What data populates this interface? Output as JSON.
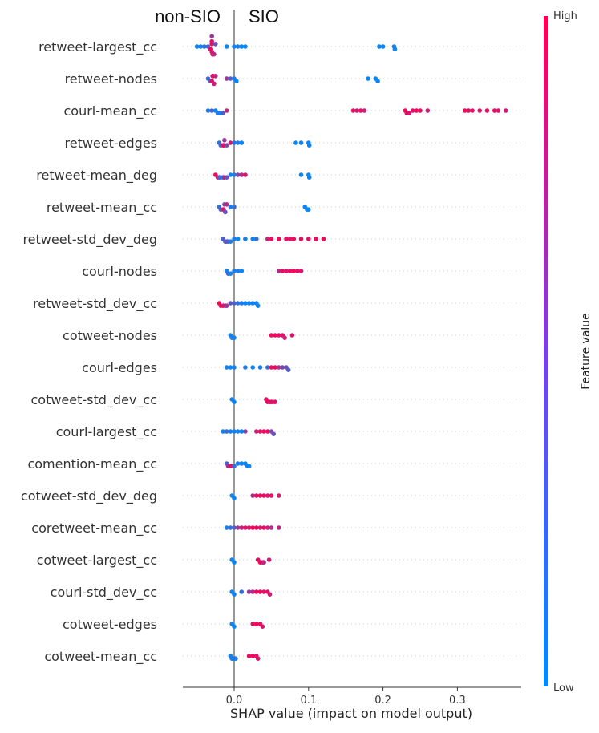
{
  "chart_data": {
    "type": "scatter",
    "subtype": "shap-beeswarm",
    "xlabel": "SHAP value (impact on model output)",
    "xlim": [
      -0.07,
      0.38
    ],
    "xticks": [
      0.0,
      0.1,
      0.2,
      0.3
    ],
    "xtick_labels": [
      "0.0",
      "0.1",
      "0.2",
      "0.3"
    ],
    "side_labels": {
      "left": "non-SIO",
      "right": "SIO"
    },
    "colorbar": {
      "title": "Feature value",
      "high": "High",
      "low": "Low",
      "color_low": "#008bfb",
      "color_high": "#ff0052"
    },
    "features": [
      {
        "name": "retweet-largest_cc",
        "points": [
          [
            -0.05,
            0.05
          ],
          [
            -0.045,
            0.1
          ],
          [
            -0.04,
            0.15
          ],
          [
            -0.035,
            0.3
          ],
          [
            -0.032,
            0.8
          ],
          [
            -0.031,
            0.9
          ],
          [
            -0.03,
            0.95
          ],
          [
            -0.03,
            0.9
          ],
          [
            -0.03,
            0.85
          ],
          [
            -0.029,
            0.9
          ],
          [
            -0.028,
            0.8
          ],
          [
            -0.027,
            0.7
          ],
          [
            -0.03,
            0.6
          ],
          [
            -0.025,
            0.4
          ],
          [
            -0.01,
            0.05
          ],
          [
            0.0,
            0.05
          ],
          [
            0.005,
            0.08
          ],
          [
            0.01,
            0.05
          ],
          [
            0.015,
            0.05
          ],
          [
            0.195,
            0.05
          ],
          [
            0.2,
            0.05
          ],
          [
            0.215,
            0.05
          ],
          [
            0.216,
            0.05
          ]
        ]
      },
      {
        "name": "retweet-nodes",
        "points": [
          [
            -0.035,
            0.2
          ],
          [
            -0.032,
            0.3
          ],
          [
            -0.03,
            0.9
          ],
          [
            -0.029,
            0.85
          ],
          [
            -0.028,
            0.95
          ],
          [
            -0.027,
            0.8
          ],
          [
            -0.025,
            0.7
          ],
          [
            -0.01,
            0.6
          ],
          [
            -0.005,
            0.3
          ],
          [
            0.0,
            0.1
          ],
          [
            0.003,
            0.05
          ],
          [
            0.18,
            0.05
          ],
          [
            0.19,
            0.05
          ],
          [
            0.193,
            0.05
          ]
        ]
      },
      {
        "name": "courl-mean_cc",
        "points": [
          [
            -0.035,
            0.1
          ],
          [
            -0.03,
            0.3
          ],
          [
            -0.025,
            0.05
          ],
          [
            -0.022,
            0.1
          ],
          [
            -0.02,
            0.2
          ],
          [
            -0.018,
            0.05
          ],
          [
            -0.015,
            0.3
          ],
          [
            -0.01,
            0.7
          ],
          [
            0.16,
            0.9
          ],
          [
            0.165,
            0.85
          ],
          [
            0.17,
            0.9
          ],
          [
            0.175,
            0.8
          ],
          [
            0.23,
            0.95
          ],
          [
            0.232,
            0.9
          ],
          [
            0.235,
            0.85
          ],
          [
            0.24,
            0.9
          ],
          [
            0.245,
            0.95
          ],
          [
            0.25,
            0.9
          ],
          [
            0.26,
            0.8
          ],
          [
            0.31,
            0.95
          ],
          [
            0.315,
            0.9
          ],
          [
            0.32,
            0.9
          ],
          [
            0.33,
            0.85
          ],
          [
            0.34,
            0.95
          ],
          [
            0.35,
            0.9
          ],
          [
            0.355,
            0.85
          ],
          [
            0.365,
            0.8
          ]
        ]
      },
      {
        "name": "retweet-edges",
        "points": [
          [
            -0.02,
            0.2
          ],
          [
            -0.018,
            0.3
          ],
          [
            -0.015,
            0.8
          ],
          [
            -0.014,
            0.9
          ],
          [
            -0.013,
            0.6
          ],
          [
            -0.01,
            0.5
          ],
          [
            -0.005,
            0.8
          ],
          [
            0.0,
            0.2
          ],
          [
            0.005,
            0.1
          ],
          [
            0.01,
            0.05
          ],
          [
            0.083,
            0.05
          ],
          [
            0.09,
            0.05
          ],
          [
            0.1,
            0.05
          ],
          [
            0.101,
            0.05
          ]
        ]
      },
      {
        "name": "retweet-mean_deg",
        "points": [
          [
            -0.025,
            0.95
          ],
          [
            -0.022,
            0.9
          ],
          [
            -0.02,
            0.3
          ],
          [
            -0.018,
            0.2
          ],
          [
            -0.015,
            0.1
          ],
          [
            -0.013,
            0.85
          ],
          [
            -0.01,
            0.4
          ],
          [
            -0.005,
            0.1
          ],
          [
            0.0,
            0.1
          ],
          [
            0.005,
            0.5
          ],
          [
            0.01,
            0.7
          ],
          [
            0.015,
            0.85
          ],
          [
            0.09,
            0.05
          ],
          [
            0.1,
            0.05
          ],
          [
            0.101,
            0.05
          ]
        ]
      },
      {
        "name": "retweet-mean_cc",
        "points": [
          [
            -0.02,
            0.2
          ],
          [
            -0.018,
            0.3
          ],
          [
            -0.015,
            0.9
          ],
          [
            -0.014,
            0.8
          ],
          [
            -0.013,
            0.5
          ],
          [
            -0.012,
            0.4
          ],
          [
            -0.01,
            0.7
          ],
          [
            -0.005,
            0.1
          ],
          [
            0.0,
            0.2
          ],
          [
            0.095,
            0.05
          ],
          [
            0.098,
            0.05
          ],
          [
            0.1,
            0.05
          ]
        ]
      },
      {
        "name": "retweet-std_dev_deg",
        "points": [
          [
            -0.015,
            0.3
          ],
          [
            -0.012,
            0.2
          ],
          [
            -0.01,
            0.5
          ],
          [
            -0.008,
            0.3
          ],
          [
            -0.005,
            0.1
          ],
          [
            0.0,
            0.1
          ],
          [
            0.005,
            0.05
          ],
          [
            0.015,
            0.1
          ],
          [
            0.025,
            0.05
          ],
          [
            0.03,
            0.2
          ],
          [
            0.045,
            0.8
          ],
          [
            0.05,
            0.9
          ],
          [
            0.06,
            0.95
          ],
          [
            0.07,
            0.9
          ],
          [
            0.075,
            0.85
          ],
          [
            0.08,
            0.95
          ],
          [
            0.09,
            0.9
          ],
          [
            0.1,
            0.85
          ],
          [
            0.11,
            0.9
          ],
          [
            0.12,
            0.95
          ]
        ]
      },
      {
        "name": "courl-nodes",
        "points": [
          [
            -0.01,
            0.1
          ],
          [
            -0.008,
            0.2
          ],
          [
            -0.005,
            0.05
          ],
          [
            0.0,
            0.1
          ],
          [
            0.005,
            0.1
          ],
          [
            0.01,
            0.05
          ],
          [
            0.06,
            0.7
          ],
          [
            0.065,
            0.9
          ],
          [
            0.07,
            0.85
          ],
          [
            0.075,
            0.9
          ],
          [
            0.08,
            0.95
          ],
          [
            0.085,
            0.9
          ],
          [
            0.09,
            0.85
          ]
        ]
      },
      {
        "name": "retweet-std_dev_cc",
        "points": [
          [
            -0.02,
            0.95
          ],
          [
            -0.018,
            0.9
          ],
          [
            -0.015,
            0.85
          ],
          [
            -0.012,
            0.8
          ],
          [
            -0.01,
            0.6
          ],
          [
            -0.005,
            0.4
          ],
          [
            0.0,
            0.3
          ],
          [
            0.005,
            0.2
          ],
          [
            0.01,
            0.1
          ],
          [
            0.015,
            0.05
          ],
          [
            0.02,
            0.05
          ],
          [
            0.025,
            0.1
          ],
          [
            0.03,
            0.05
          ],
          [
            0.032,
            0.05
          ]
        ]
      },
      {
        "name": "cotweet-nodes",
        "points": [
          [
            -0.005,
            0.05
          ],
          [
            -0.003,
            0.1
          ],
          [
            0.0,
            0.05
          ],
          [
            0.05,
            0.9
          ],
          [
            0.055,
            0.95
          ],
          [
            0.06,
            0.85
          ],
          [
            0.065,
            0.9
          ],
          [
            0.068,
            0.8
          ],
          [
            0.078,
            0.85
          ]
        ]
      },
      {
        "name": "courl-edges",
        "points": [
          [
            -0.01,
            0.1
          ],
          [
            -0.005,
            0.05
          ],
          [
            0.0,
            0.05
          ],
          [
            0.015,
            0.1
          ],
          [
            0.025,
            0.05
          ],
          [
            0.035,
            0.1
          ],
          [
            0.045,
            0.2
          ],
          [
            0.05,
            0.9
          ],
          [
            0.055,
            0.95
          ],
          [
            0.06,
            0.6
          ],
          [
            0.065,
            0.5
          ],
          [
            0.07,
            0.4
          ],
          [
            0.073,
            0.3
          ]
        ]
      },
      {
        "name": "cotweet-std_dev_cc",
        "points": [
          [
            -0.003,
            0.05
          ],
          [
            0.0,
            0.05
          ],
          [
            0.043,
            0.9
          ],
          [
            0.045,
            0.95
          ],
          [
            0.048,
            0.9
          ],
          [
            0.05,
            0.85
          ],
          [
            0.052,
            0.9
          ],
          [
            0.055,
            0.85
          ]
        ]
      },
      {
        "name": "courl-largest_cc",
        "points": [
          [
            -0.015,
            0.1
          ],
          [
            -0.01,
            0.2
          ],
          [
            -0.005,
            0.1
          ],
          [
            0.0,
            0.05
          ],
          [
            0.005,
            0.1
          ],
          [
            0.01,
            0.05
          ],
          [
            0.015,
            0.5
          ],
          [
            0.03,
            0.8
          ],
          [
            0.035,
            0.9
          ],
          [
            0.04,
            0.95
          ],
          [
            0.045,
            0.9
          ],
          [
            0.05,
            0.5
          ],
          [
            0.053,
            0.4
          ]
        ]
      },
      {
        "name": "comention-mean_cc",
        "points": [
          [
            -0.01,
            0.3
          ],
          [
            -0.008,
            0.7
          ],
          [
            -0.005,
            0.8
          ],
          [
            -0.003,
            0.9
          ],
          [
            0.0,
            0.2
          ],
          [
            0.005,
            0.1
          ],
          [
            0.01,
            0.05
          ],
          [
            0.015,
            0.05
          ],
          [
            0.018,
            0.1
          ],
          [
            0.02,
            0.05
          ]
        ]
      },
      {
        "name": "cotweet-std_dev_deg",
        "points": [
          [
            -0.003,
            0.05
          ],
          [
            0.0,
            0.05
          ],
          [
            0.025,
            0.7
          ],
          [
            0.03,
            0.9
          ],
          [
            0.035,
            0.95
          ],
          [
            0.04,
            0.9
          ],
          [
            0.045,
            0.85
          ],
          [
            0.05,
            0.9
          ],
          [
            0.06,
            0.8
          ]
        ]
      },
      {
        "name": "coretweet-mean_cc",
        "points": [
          [
            -0.01,
            0.1
          ],
          [
            -0.005,
            0.2
          ],
          [
            0.0,
            0.3
          ],
          [
            0.005,
            0.6
          ],
          [
            0.01,
            0.8
          ],
          [
            0.015,
            0.9
          ],
          [
            0.02,
            0.85
          ],
          [
            0.025,
            0.95
          ],
          [
            0.03,
            0.9
          ],
          [
            0.035,
            0.85
          ],
          [
            0.04,
            0.9
          ],
          [
            0.045,
            0.8
          ],
          [
            0.05,
            0.7
          ],
          [
            0.06,
            0.75
          ]
        ]
      },
      {
        "name": "cotweet-largest_cc",
        "points": [
          [
            -0.003,
            0.05
          ],
          [
            0.0,
            0.05
          ],
          [
            0.032,
            0.9
          ],
          [
            0.035,
            0.95
          ],
          [
            0.038,
            0.85
          ],
          [
            0.04,
            0.7
          ],
          [
            0.047,
            0.8
          ]
        ]
      },
      {
        "name": "courl-std_dev_cc",
        "points": [
          [
            -0.003,
            0.05
          ],
          [
            0.0,
            0.05
          ],
          [
            0.01,
            0.2
          ],
          [
            0.02,
            0.6
          ],
          [
            0.025,
            0.7
          ],
          [
            0.03,
            0.9
          ],
          [
            0.035,
            0.95
          ],
          [
            0.04,
            0.85
          ],
          [
            0.045,
            0.9
          ],
          [
            0.048,
            0.8
          ]
        ]
      },
      {
        "name": "cotweet-edges",
        "points": [
          [
            -0.003,
            0.05
          ],
          [
            0.0,
            0.05
          ],
          [
            0.025,
            0.9
          ],
          [
            0.03,
            0.95
          ],
          [
            0.035,
            0.9
          ],
          [
            0.038,
            0.85
          ]
        ]
      },
      {
        "name": "cotweet-mean_cc",
        "points": [
          [
            -0.005,
            0.05
          ],
          [
            -0.003,
            0.1
          ],
          [
            0.0,
            0.05
          ],
          [
            0.002,
            0.1
          ],
          [
            0.02,
            0.9
          ],
          [
            0.025,
            0.95
          ],
          [
            0.03,
            0.9
          ],
          [
            0.032,
            0.85
          ]
        ]
      }
    ]
  }
}
